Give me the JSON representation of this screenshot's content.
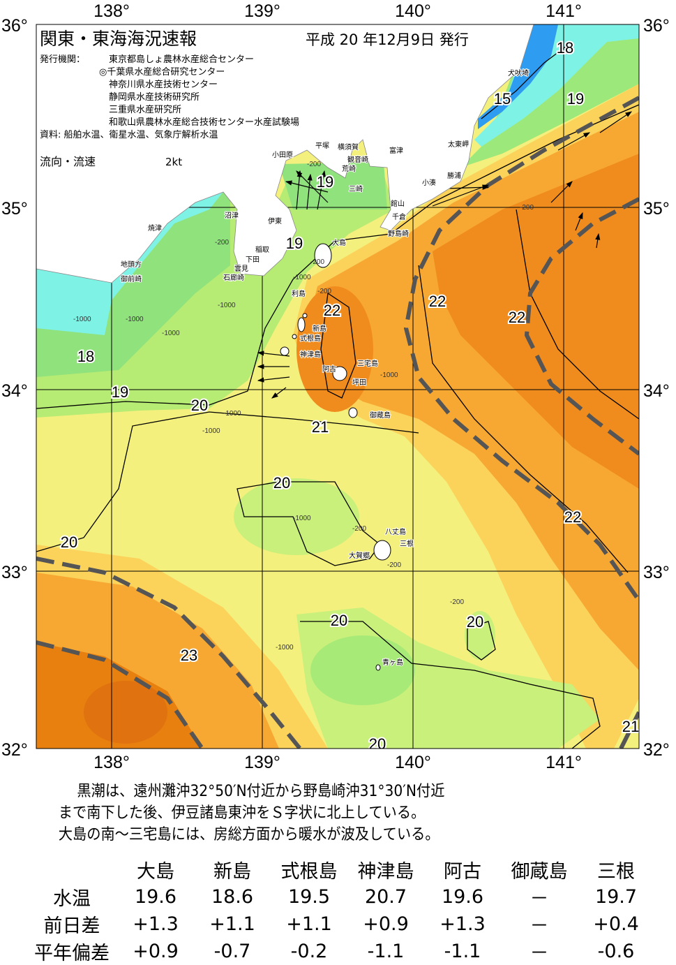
{
  "header": {
    "title": "関東・東海海況速報",
    "issue_date": "平成 20 年12月9日 発行",
    "publisher_label": "発行機関：",
    "publishers": [
      "東京都島しょ農林水産総合センター",
      "◎千葉県水産総合研究センター",
      "神奈川県水産技術センター",
      "静岡県水産技術研究所",
      "三重県水産研究所",
      "和歌山県農林水産総合技術センター水産試験場"
    ],
    "sources": "資料: 船舶水温、衛星水温、気象庁解析水温",
    "current_legend_label": "流向・流速",
    "current_legend_scale": "2kt"
  },
  "axes": {
    "longitude_ticks": [
      "138°",
      "139°",
      "140°",
      "141°"
    ],
    "latitude_ticks": [
      "36°",
      "35°",
      "34°",
      "33°",
      "32°"
    ]
  },
  "map": {
    "type": "sea surface temperature contour map",
    "colors": {
      "cold_blue": "#2e9cf0",
      "cyan": "#7ff2e6",
      "green": "#9ce87a",
      "light_green": "#c8f07a",
      "yellow": "#f4f07e",
      "light_orange": "#fbd35a",
      "orange": "#f7a832",
      "deep_orange": "#f08c1e",
      "dark_orange": "#e0720f",
      "kuroshio_axis": "#555555",
      "land": "#ffffff"
    },
    "contour_labels": [
      "18",
      "15",
      "19",
      "19",
      "19",
      "22",
      "22",
      "22",
      "18",
      "19",
      "20",
      "21",
      "20",
      "20",
      "22",
      "20",
      "20",
      "23",
      "20",
      "21"
    ],
    "depth_labels": [
      "-200",
      "-200",
      "-200",
      "-200",
      "-1000",
      "-1000",
      "-1000",
      "-1000",
      "-1000",
      "-1000",
      "-1000",
      "-1000",
      "-1000",
      "-200",
      "-200",
      "-200",
      "-1000",
      "-200"
    ],
    "place_names": [
      "犬吠埼",
      "太東岬",
      "勝浦",
      "小湊",
      "館山",
      "千倉",
      "野島崎",
      "富津",
      "横須賀",
      "観音崎",
      "荒崎",
      "三崎",
      "平塚",
      "小田原",
      "伊東",
      "稲取",
      "下田",
      "雲見",
      "石廊崎",
      "沼津",
      "焼津",
      "地頭方",
      "御前崎",
      "大島",
      "利島",
      "新島",
      "式根島",
      "神津島",
      "阿古",
      "三宅島",
      "坪田",
      "御蔵島",
      "八丈島",
      "三根",
      "大賀郷",
      "青ヶ島"
    ]
  },
  "summary": [
    "黒潮は、遠州灘沖32°50′N付近から野島崎沖31°30′N付近",
    "まで南下した後、伊豆諸島東沖をＳ字状に北上している。",
    "大島の南～三宅島には、房総方面から暖水が波及している。"
  ],
  "observations": {
    "stations": [
      "大島",
      "新島",
      "式根島",
      "神津島",
      "阿古",
      "御蔵島",
      "三根"
    ],
    "rows": [
      {
        "label": "水温",
        "values": [
          "19.6",
          "18.6",
          "19.5",
          "20.7",
          "19.6",
          "－",
          "19.7"
        ]
      },
      {
        "label": "前日差",
        "values": [
          "+1.3",
          "+1.1",
          "+1.1",
          "+0.9",
          "+1.3",
          "－",
          "+0.4"
        ]
      },
      {
        "label": "平年偏差",
        "values": [
          "+0.9",
          "-0.7",
          "-0.2",
          "-1.1",
          "-1.1",
          "－",
          "-0.6"
        ]
      }
    ]
  }
}
